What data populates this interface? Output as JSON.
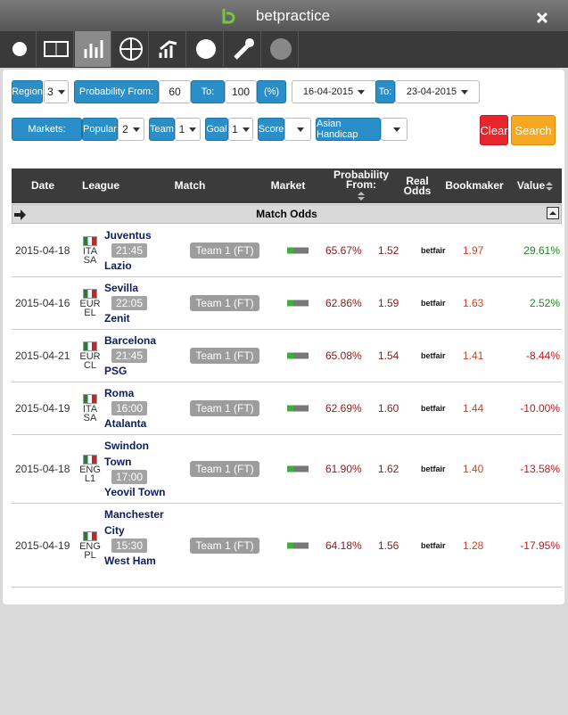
{
  "header": {
    "brand": "betpractice"
  },
  "filters": {
    "region_label": "Region",
    "region_value": "3",
    "prob_from_label": "Probability From:",
    "prob_from_value": "60",
    "to_label": "To:",
    "prob_to_value": "100",
    "unit": "(%)",
    "date_from": "16-04-2015",
    "date_to_label": "To:",
    "date_to": "23-04-2015",
    "markets_label": "Markets:",
    "popular_label": "Popular",
    "popular_value": "2",
    "team_label": "Team",
    "team_value": "1",
    "goal_label": "Goal",
    "goal_value": "1",
    "score_label": "Score",
    "asian_label": "Asian Handicap",
    "clear": "Clear",
    "search": "Search"
  },
  "table": {
    "columns": [
      "Date",
      "League",
      "Match",
      "Market",
      "Probability From:",
      "Real Odds",
      "Bookmaker",
      "Value"
    ],
    "section": "Match Odds",
    "rows": [
      {
        "date": "2015-04-18",
        "league": [
          "ITA",
          "SA"
        ],
        "home": "Juventus",
        "time": "21:45",
        "away": "Lazio",
        "market": "Team 1 (FT)",
        "probability": "65.67%",
        "real_odds": "1.52",
        "bookmaker": "betfair",
        "odds": "1.97",
        "value": "29.61%"
      },
      {
        "date": "2015-04-16",
        "league": [
          "EUR",
          "EL"
        ],
        "home": "Sevilla",
        "time": "22:05",
        "away": "Zenit",
        "market": "Team 1 (FT)",
        "probability": "62.86%",
        "real_odds": "1.59",
        "bookmaker": "betfair",
        "odds": "1.63",
        "value": "2.52%"
      },
      {
        "date": "2015-04-21",
        "league": [
          "EUR",
          "CL"
        ],
        "home": "Barcelona",
        "time": "21:45",
        "away": "PSG",
        "market": "Team 1 (FT)",
        "probability": "65.08%",
        "real_odds": "1.54",
        "bookmaker": "betfair",
        "odds": "1.41",
        "value": "-8.44%"
      },
      {
        "date": "2015-04-19",
        "league": [
          "ITA",
          "SA"
        ],
        "home": "Roma",
        "time": "16:00",
        "away": "Atalanta",
        "market": "Team 1 (FT)",
        "probability": "62.69%",
        "real_odds": "1.60",
        "bookmaker": "betfair",
        "odds": "1.44",
        "value": "-10.00%"
      },
      {
        "date": "2015-04-18",
        "league": [
          "ENG",
          "L1"
        ],
        "home": "Swindon Town",
        "time": "17:00",
        "away": "Yeovil Town",
        "market": "Team 1 (FT)",
        "probability": "61.90%",
        "real_odds": "1.62",
        "bookmaker": "betfair",
        "odds": "1.40",
        "value": "-13.58%"
      },
      {
        "date": "2015-04-19",
        "league": [
          "ENG",
          "PL"
        ],
        "home": "Manchester City",
        "time": "15:30",
        "away": "West Ham",
        "market": "Team 1 (FT)",
        "probability": "64.18%",
        "real_odds": "1.56",
        "bookmaker": "betfair",
        "odds": "1.28",
        "value": "-17.95%"
      }
    ]
  }
}
